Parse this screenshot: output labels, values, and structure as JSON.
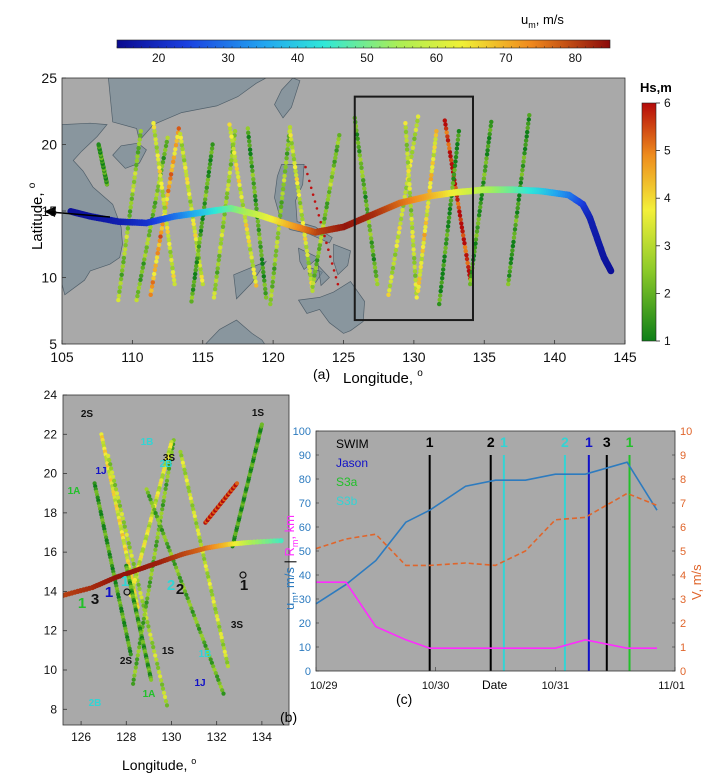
{
  "colors": {
    "plot_bg": "#a9a9a9",
    "land": "#6f8795",
    "black": "#000000",
    "line_blue": "#2d7bbf",
    "line_orange": "#e0652b",
    "line_magenta": "#ff2bff",
    "swim": "#000000",
    "jason": "#1010c8",
    "s3a": "#22c02a",
    "s3b": "#33d4d4",
    "box": "#1a1a1a"
  },
  "top_colorbar": {
    "label": "u",
    "sub": "m",
    "unit": ", m/s",
    "ticks": [
      "20",
      "30",
      "40",
      "50",
      "60",
      "70",
      "80"
    ]
  },
  "right_colorbar": {
    "label": "Hs,m",
    "ticks": [
      "1",
      "2",
      "3",
      "4",
      "5",
      "6"
    ]
  },
  "panel_a": {
    "tag": "(a)",
    "xlabel": "Longitude, ",
    "ylabel": "Latitude, ",
    "degree": "o",
    "xticks": [
      "105",
      "110",
      "115",
      "120",
      "125",
      "130",
      "135",
      "140",
      "145"
    ],
    "yticks": [
      "5",
      "10",
      "15",
      "20",
      "25"
    ]
  },
  "panel_b": {
    "tag": "(b)",
    "xlabel": "Longitude, ",
    "degree": "o",
    "xticks": [
      "126",
      "128",
      "130",
      "132",
      "134"
    ],
    "yticks": [
      "8",
      "10",
      "12",
      "14",
      "16",
      "18",
      "20",
      "22",
      "24"
    ],
    "labels": [
      {
        "text": "2S",
        "color": "black"
      },
      {
        "text": "1S",
        "color": "black"
      },
      {
        "text": "3S",
        "color": "black"
      },
      {
        "text": "3S",
        "color": "black"
      },
      {
        "text": "2S",
        "color": "black"
      },
      {
        "text": "1S",
        "color": "black"
      },
      {
        "text": "1J",
        "color": "jason"
      },
      {
        "text": "1J",
        "color": "jason"
      },
      {
        "text": "1A",
        "color": "s3a"
      },
      {
        "text": "1A",
        "color": "s3a"
      },
      {
        "text": "1B",
        "color": "s3b"
      },
      {
        "text": "2B",
        "color": "s3b"
      },
      {
        "text": "2B",
        "color": "s3b"
      },
      {
        "text": "1B",
        "color": "s3b"
      }
    ],
    "points": [
      {
        "text": "1",
        "color": "black"
      },
      {
        "text": "2",
        "color": "black"
      },
      {
        "text": "3",
        "color": "black"
      },
      {
        "text": "1",
        "color": "jason"
      },
      {
        "text": "1",
        "color": "s3a"
      },
      {
        "text": "2",
        "color": "s3b"
      },
      {
        "text": "1",
        "color": "s3b"
      }
    ]
  },
  "panel_c": {
    "tag": "(c)",
    "xlabel": "Date",
    "ylabel_left_1": "u",
    "ylabel_left_2": ", m/s",
    "ylabel_sep": " | ",
    "ylabel_left_3": "R",
    "ylabel_left_4": ", km",
    "ylabel_sub": "m",
    "ylabel_right": "V, m/s",
    "legend": [
      "SWIM",
      "Jason",
      "S3a",
      "S3b"
    ],
    "xticks": [
      "10/29",
      "10/30",
      "10/31",
      "11/01"
    ],
    "yticks_left": [
      "0",
      "10",
      "20",
      "30",
      "40",
      "50",
      "60",
      "70",
      "80",
      "90",
      "100"
    ],
    "yticks_right": [
      "0",
      "1",
      "2",
      "3",
      "4",
      "5",
      "6",
      "7",
      "8",
      "9",
      "10"
    ],
    "event_labels": [
      "1",
      "2",
      "1",
      "2",
      "1",
      "3",
      "1"
    ]
  },
  "chart_data": [
    {
      "type": "line",
      "panel": "(c)",
      "x": [
        0.0,
        0.25,
        0.5,
        0.75,
        0.95,
        1.25,
        1.5,
        1.75,
        2.0,
        2.25,
        2.6,
        2.85
      ],
      "x_ticks": [
        "10/29",
        "10/30",
        "10/31",
        "11/01"
      ],
      "ylim_left": [
        0,
        100
      ],
      "ylim_right": [
        0,
        10
      ],
      "series": [
        {
          "name": "u_m",
          "axis": "left",
          "color": "line_blue",
          "values": [
            28,
            36,
            46,
            62,
            67,
            77,
            79.5,
            79.5,
            82,
            82,
            87,
            67
          ]
        },
        {
          "name": "R_m",
          "axis": "left",
          "color": "line_magenta",
          "values": [
            37,
            37,
            18.5,
            13,
            9.5,
            9.5,
            9.5,
            9.5,
            9.5,
            13,
            9.5,
            9.5
          ]
        },
        {
          "name": "V",
          "axis": "right",
          "color": "line_orange",
          "values": [
            5.1,
            5.5,
            5.7,
            4.4,
            4.4,
            4.5,
            4.4,
            5.0,
            6.3,
            6.4,
            7.4,
            6.9
          ]
        }
      ],
      "events": [
        {
          "label": "1",
          "group": "swim",
          "x": 0.95
        },
        {
          "label": "2",
          "group": "swim",
          "x": 1.46
        },
        {
          "label": "1",
          "group": "s3b",
          "x": 1.57
        },
        {
          "label": "2",
          "group": "s3b",
          "x": 2.08
        },
        {
          "label": "1",
          "group": "jason",
          "x": 2.28
        },
        {
          "label": "3",
          "group": "swim",
          "x": 2.43
        },
        {
          "label": "1",
          "group": "s3a",
          "x": 2.62
        }
      ]
    },
    {
      "type": "scatter",
      "panel": "(a)",
      "xlim": [
        105,
        145
      ],
      "ylim": [
        5,
        25
      ],
      "track": [
        [
          144,
          10.5
        ],
        [
          143.5,
          11.5
        ],
        [
          143,
          13
        ],
        [
          142.5,
          14.5
        ],
        [
          142,
          15.5
        ],
        [
          141,
          16.2
        ],
        [
          139,
          16.5
        ],
        [
          137,
          16.6
        ],
        [
          135,
          16.6
        ],
        [
          133,
          16.4
        ],
        [
          131,
          16.1
        ],
        [
          129,
          15.6
        ],
        [
          127,
          14.7
        ],
        [
          125,
          13.8
        ],
        [
          123,
          13.4
        ],
        [
          121,
          14.0
        ],
        [
          119,
          14.7
        ],
        [
          117,
          15.2
        ],
        [
          115,
          14.9
        ],
        [
          113,
          14.6
        ],
        [
          111,
          14.1
        ],
        [
          109,
          14.2
        ],
        [
          107,
          14.6
        ],
        [
          105.5,
          15
        ]
      ],
      "track_um": [
        15,
        16,
        17,
        18,
        22,
        30,
        40,
        48,
        55,
        62,
        70,
        76,
        82,
        84,
        80,
        70,
        60,
        50,
        40,
        30,
        22,
        18,
        16,
        15
      ],
      "box": {
        "lon": [
          125.8,
          134.2
        ],
        "lat": [
          6.8,
          23.6
        ]
      },
      "swaths": [
        {
          "lon": [
            108.2,
            107.6
          ],
          "lat": [
            17,
            20
          ],
          "hs": 1.5
        },
        {
          "lon": [
            109,
            110.6
          ],
          "lat": [
            8.3,
            21
          ],
          "hs": 2.5
        },
        {
          "lon": [
            110.3,
            112.5
          ],
          "lat": [
            8.3,
            20.5
          ],
          "hs": 2.2
        },
        {
          "lon": [
            111.3,
            113.3
          ],
          "lat": [
            8.7,
            21.2
          ],
          "hs": 4.5
        },
        {
          "lon": [
            113,
            111.5
          ],
          "lat": [
            9.5,
            21.6
          ],
          "hs": 3.3
        },
        {
          "lon": [
            115,
            113.4
          ],
          "lat": [
            9.5,
            20.8
          ],
          "hs": 3.2
        },
        {
          "lon": [
            114.2,
            115.7
          ],
          "lat": [
            8.2,
            20
          ],
          "hs": 1.7
        },
        {
          "lon": [
            115.8,
            117.3
          ],
          "lat": [
            8.5,
            21
          ],
          "hs": 2.6
        },
        {
          "lon": [
            118.8,
            116.9
          ],
          "lat": [
            9.4,
            21.5
          ],
          "hs": 3.4
        },
        {
          "lon": [
            119.5,
            118.2
          ],
          "lat": [
            8.5,
            21.2
          ],
          "hs": 1.7
        },
        {
          "lon": [
            119.8,
            121.2
          ],
          "lat": [
            8,
            21.3
          ],
          "hs": 2.4
        },
        {
          "lon": [
            122.8,
            121.2
          ],
          "lat": [
            9,
            21
          ],
          "hs": 3.2
        },
        {
          "lon": [
            122.8,
            124.7
          ],
          "lat": [
            9.3,
            20.7
          ],
          "hs": 2.3
        },
        {
          "lon": [
            127.4,
            125.8
          ],
          "lat": [
            9.5,
            22
          ],
          "hs": 2.0
        },
        {
          "lon": [
            128.2,
            130.3
          ],
          "lat": [
            8.7,
            22.1
          ],
          "hs": 3.1
        },
        {
          "lon": [
            130.2,
            129.4
          ],
          "lat": [
            8.5,
            21.6
          ],
          "hs": 3.0
        },
        {
          "lon": [
            130.3,
            131.6
          ],
          "lat": [
            9,
            21
          ],
          "hs": 3.8
        },
        {
          "lon": [
            134,
            132.2
          ],
          "lat": [
            9.9,
            21.8
          ],
          "hs": 5.8
        },
        {
          "lon": [
            131.8,
            133.2
          ],
          "lat": [
            8,
            21
          ],
          "hs": 1.4
        },
        {
          "lon": [
            134,
            135.5
          ],
          "lat": [
            9.5,
            21.7
          ],
          "hs": 1.6
        },
        {
          "lon": [
            136.7,
            138.2
          ],
          "lat": [
            9.5,
            22.2
          ],
          "hs": 1.5
        }
      ]
    }
  ]
}
